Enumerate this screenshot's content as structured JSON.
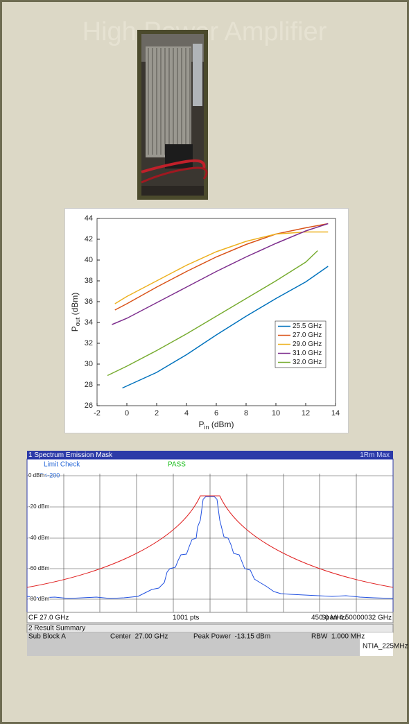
{
  "title": "High Power Amplifier",
  "chart_data": {
    "type": "line",
    "xlabel": {
      "main": "P",
      "sub": "in",
      "unit": " (dBm)"
    },
    "ylabel": {
      "main": "P",
      "sub": "out",
      "unit": " (dBm)"
    },
    "xlim": [
      -2,
      14
    ],
    "ylim": [
      26,
      44
    ],
    "xticks": [
      -2,
      0,
      2,
      4,
      6,
      8,
      10,
      12,
      14
    ],
    "yticks": [
      26,
      28,
      30,
      32,
      34,
      36,
      38,
      40,
      42,
      44
    ],
    "legend": "lower right",
    "series": [
      {
        "name": "25.5 GHz",
        "color": "#0072bd",
        "x": [
          -0.3,
          2,
          4,
          6,
          8,
          10,
          12,
          13.5
        ],
        "values": [
          27.7,
          29.2,
          30.9,
          32.8,
          34.6,
          36.3,
          37.9,
          39.4
        ]
      },
      {
        "name": "27.0 GHz",
        "color": "#d95319",
        "x": [
          -0.8,
          0,
          2,
          4,
          6,
          8,
          10,
          12,
          13.5
        ],
        "values": [
          35.2,
          35.8,
          37.4,
          38.9,
          40.3,
          41.5,
          42.5,
          43.1,
          43.5
        ]
      },
      {
        "name": "29.0 GHz",
        "color": "#edb120",
        "x": [
          -0.8,
          0,
          2,
          4,
          6,
          8,
          10,
          12,
          13.5
        ],
        "values": [
          35.8,
          36.5,
          38.0,
          39.5,
          40.8,
          41.8,
          42.5,
          42.7,
          42.7
        ]
      },
      {
        "name": "31.0 GHz",
        "color": "#7e2f8e",
        "x": [
          -1,
          0,
          2,
          4,
          6,
          8,
          10,
          12,
          13.5
        ],
        "values": [
          33.8,
          34.4,
          35.9,
          37.4,
          38.9,
          40.3,
          41.6,
          42.8,
          43.5
        ]
      },
      {
        "name": "32.0 GHz",
        "color": "#77ac30",
        "x": [
          -1.3,
          0,
          2,
          4,
          6,
          8,
          10,
          12,
          12.8
        ],
        "values": [
          28.9,
          29.8,
          31.3,
          32.9,
          34.6,
          36.3,
          38.0,
          39.8,
          40.9
        ]
      }
    ]
  },
  "spectrum": {
    "header": "1 Spectrum Emission Mask",
    "trace": "1Rm Max",
    "limit_check": "Limit Check",
    "result": "PASS",
    "limit_line": "P<-200",
    "y_labels": [
      "0 dBm",
      "-20 dBm",
      "-40 dBm",
      "-60 dBm",
      "-80 dBm"
    ],
    "footer": [
      "CF 27.0 GHz",
      "1001 pts",
      "450.0 MHz/",
      "Span 4.50000032 GHz"
    ],
    "summary": {
      "header": "2 Result Summary",
      "row": [
        "Sub Block A",
        "Center  27.00 GHz",
        "Peak Power  -13.15 dBm",
        "RBW  1.000 MHz",
        "NTIA_225MHz"
      ]
    }
  }
}
